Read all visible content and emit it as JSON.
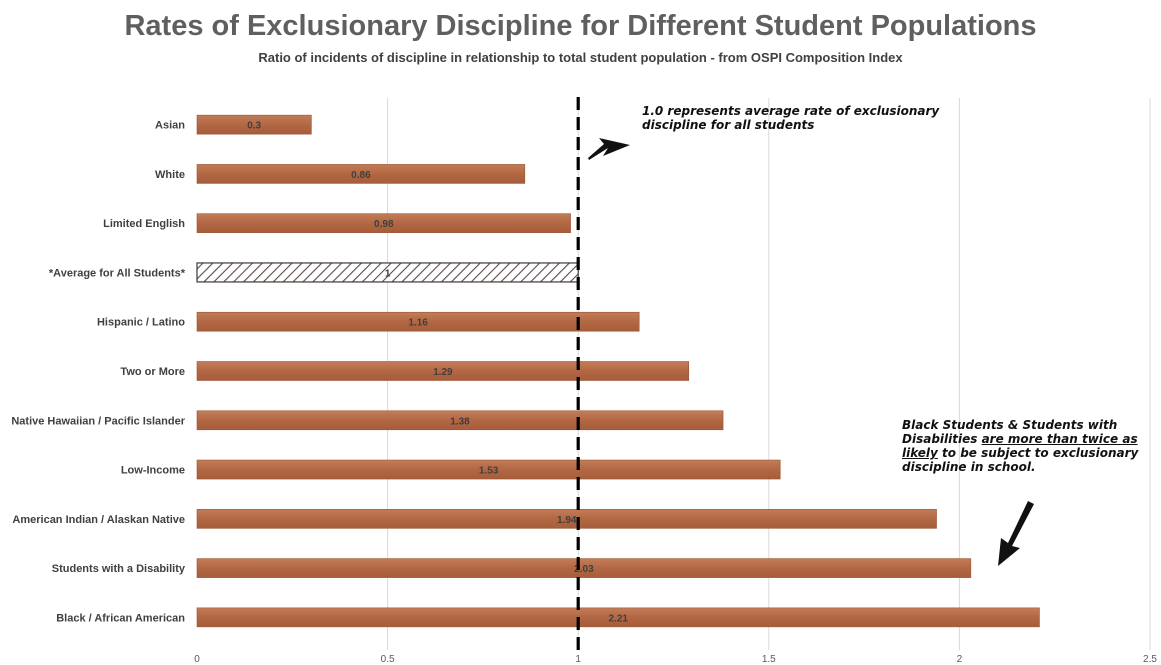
{
  "colors": {
    "bar": "#b56a45",
    "bar_edge": "#9a5534",
    "hatch": "#5a4a45",
    "grid": "#d9d9d9",
    "text": "#404040",
    "title": "#5f5f5f"
  },
  "chart_data": {
    "type": "bar",
    "orientation": "horizontal",
    "title": "Rates of Exclusionary Discipline for Different Student Populations",
    "subtitle": "Ratio of incidents of discipline in relationship to total student population - from OSPI Composition Index",
    "categories": [
      "Asian",
      "White",
      "Limited English",
      "*Average for All Students*",
      "Hispanic / Latino",
      "Two or More",
      "Native Hawaiian / Pacific Islander",
      "Low-Income",
      "American Indian / Alaskan Native",
      "Students with a Disability",
      "Black / African American"
    ],
    "values": [
      0.3,
      0.86,
      0.98,
      1,
      1.16,
      1.29,
      1.38,
      1.53,
      1.94,
      2.03,
      2.21
    ],
    "data_labels": [
      "0.3",
      "0.86",
      "0.98",
      "1",
      "1.16",
      "1.29",
      "1.38",
      "1.53",
      "1.94",
      "2.03",
      "2.21"
    ],
    "highlighted_category": "*Average for All Students*",
    "xlim": [
      0,
      2.5
    ],
    "x_ticks": [
      "0",
      "0.5",
      "1",
      "1.5",
      "2",
      "2.5"
    ],
    "x_tick_values": [
      0,
      0.5,
      1,
      1.5,
      2,
      2.5
    ],
    "reference_line": 1,
    "grid": true,
    "xlabel": "",
    "ylabel": ""
  },
  "annotations": {
    "note1": "1.0 represents average rate of exclusionary discipline for all students",
    "note2_part1": "Black Students & Students with Disabilities ",
    "note2_underline1": "are more than twice as",
    "note2_underline2": "likely",
    "note2_part2": " to be subject to exclusionary discipline in school."
  }
}
